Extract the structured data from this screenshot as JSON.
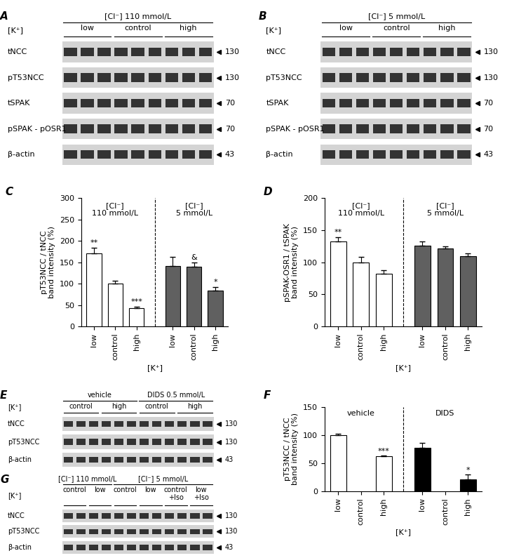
{
  "chart_data": [
    {
      "panel": "C",
      "type": "bar",
      "y_label": "pT53NCC / tNCC\nband intensity (%)",
      "x_label": "[K⁺]",
      "ylim": [
        0,
        300
      ],
      "yticks": [
        0,
        50,
        100,
        150,
        200,
        250,
        300
      ],
      "grid": false,
      "groups": [
        {
          "label": "[Cl⁻]\n110 mmol/L",
          "color": "#ffffff",
          "categories": [
            "low",
            "control",
            "high"
          ],
          "values": [
            170,
            100,
            42
          ],
          "errors": [
            14,
            6,
            4
          ],
          "marks": [
            "**",
            null,
            "***"
          ]
        },
        {
          "label": "[Cl⁻]\n5 mmol/L",
          "color": "#606060",
          "categories": [
            "low",
            "control",
            "high"
          ],
          "values": [
            142,
            140,
            84
          ],
          "errors": [
            20,
            10,
            8
          ],
          "marks": [
            null,
            "&",
            "*"
          ]
        }
      ]
    },
    {
      "panel": "D",
      "type": "bar",
      "y_label": "pSPAK-OSR1 / tSPAK\nband intensity (%)",
      "x_label": "[K⁺]",
      "ylim": [
        0,
        200
      ],
      "yticks": [
        0,
        50,
        100,
        150,
        200
      ],
      "grid": false,
      "groups": [
        {
          "label": "[Cl⁻]\n110 mmol/L",
          "color": "#ffffff",
          "categories": [
            "low",
            "control",
            "high"
          ],
          "values": [
            132,
            100,
            82
          ],
          "errors": [
            7,
            8,
            6
          ],
          "marks": [
            "**",
            null,
            null
          ]
        },
        {
          "label": "[Cl⁻]\n5 mmol/L",
          "color": "#606060",
          "categories": [
            "low",
            "control",
            "high"
          ],
          "values": [
            126,
            121,
            109
          ],
          "errors": [
            6,
            4,
            5
          ],
          "marks": [
            null,
            null,
            null
          ]
        }
      ]
    },
    {
      "panel": "F",
      "type": "bar",
      "y_label": "pT53NCC / tNCC\nband intensity (%)",
      "x_label": "[K⁺]",
      "ylim": [
        0,
        150
      ],
      "yticks": [
        0,
        50,
        100,
        150
      ],
      "grid": false,
      "groups": [
        {
          "label": "vehicle",
          "color": "#ffffff",
          "categories": [
            "low",
            "control",
            "high"
          ],
          "values": [
            100,
            null,
            62
          ],
          "errors": [
            3,
            null,
            2
          ],
          "marks": [
            null,
            null,
            "***"
          ]
        },
        {
          "label": "DIDS",
          "color": "#000000",
          "categories": [
            "low",
            "control",
            "high"
          ],
          "values": [
            78,
            null,
            21
          ],
          "errors": [
            8,
            null,
            9
          ],
          "marks": [
            null,
            null,
            "*"
          ]
        }
      ]
    }
  ],
  "blots": [
    {
      "panel": "A",
      "k_label": "[K⁺]",
      "lanes_per_subgroup": 3,
      "groups": [
        {
          "label": "[Cl⁻] 110 mmol/L",
          "subgroups": [
            "low",
            "control",
            "high"
          ]
        }
      ],
      "rows": [
        {
          "label": "tNCC",
          "marker": 130
        },
        {
          "label": "pT53NCC",
          "marker": 130
        },
        {
          "label": "tSPAK",
          "marker": 70
        },
        {
          "label": "pSPAK - pOSR1",
          "marker": 70
        },
        {
          "label": "β-actin",
          "marker": 43
        }
      ]
    },
    {
      "panel": "B",
      "k_label": "[K⁺]",
      "lanes_per_subgroup": 3,
      "groups": [
        {
          "label": "[Cl⁻] 5 mmol/L",
          "subgroups": [
            "low",
            "control",
            "high"
          ]
        }
      ],
      "rows": [
        {
          "label": "tNCC",
          "marker": 130
        },
        {
          "label": "pT53NCC",
          "marker": 130
        },
        {
          "label": "tSPAK",
          "marker": 70
        },
        {
          "label": "pSPAK - pOSR1",
          "marker": 70
        },
        {
          "label": "β-actin",
          "marker": 43
        }
      ]
    },
    {
      "panel": "E",
      "k_label": "[K⁺]",
      "lanes_per_subgroup": 3,
      "groups": [
        {
          "label": "vehicle",
          "subgroups": [
            "control",
            "high"
          ]
        },
        {
          "label": "DIDS 0.5 mmol/L",
          "subgroups": [
            "control",
            "high"
          ]
        }
      ],
      "rows": [
        {
          "label": "tNCC",
          "marker": 130
        },
        {
          "label": "pT53NCC",
          "marker": 130
        },
        {
          "label": "β-actin",
          "marker": 43
        }
      ]
    },
    {
      "panel": "G",
      "k_label": "[K⁺]",
      "lanes_per_subgroup": 2,
      "groups": [
        {
          "label": "[Cl⁻] 110 mmol/L",
          "subgroups": [
            "control",
            "low"
          ]
        },
        {
          "label": "[Cl⁻] 5 mmol/L",
          "subgroups": [
            "control",
            "low",
            "control\n+Iso",
            "low\n+Iso"
          ]
        }
      ],
      "rows": [
        {
          "label": "tNCC",
          "marker": 130
        },
        {
          "label": "pT53NCC",
          "marker": 130
        },
        {
          "label": "β-actin",
          "marker": 43
        }
      ]
    }
  ]
}
